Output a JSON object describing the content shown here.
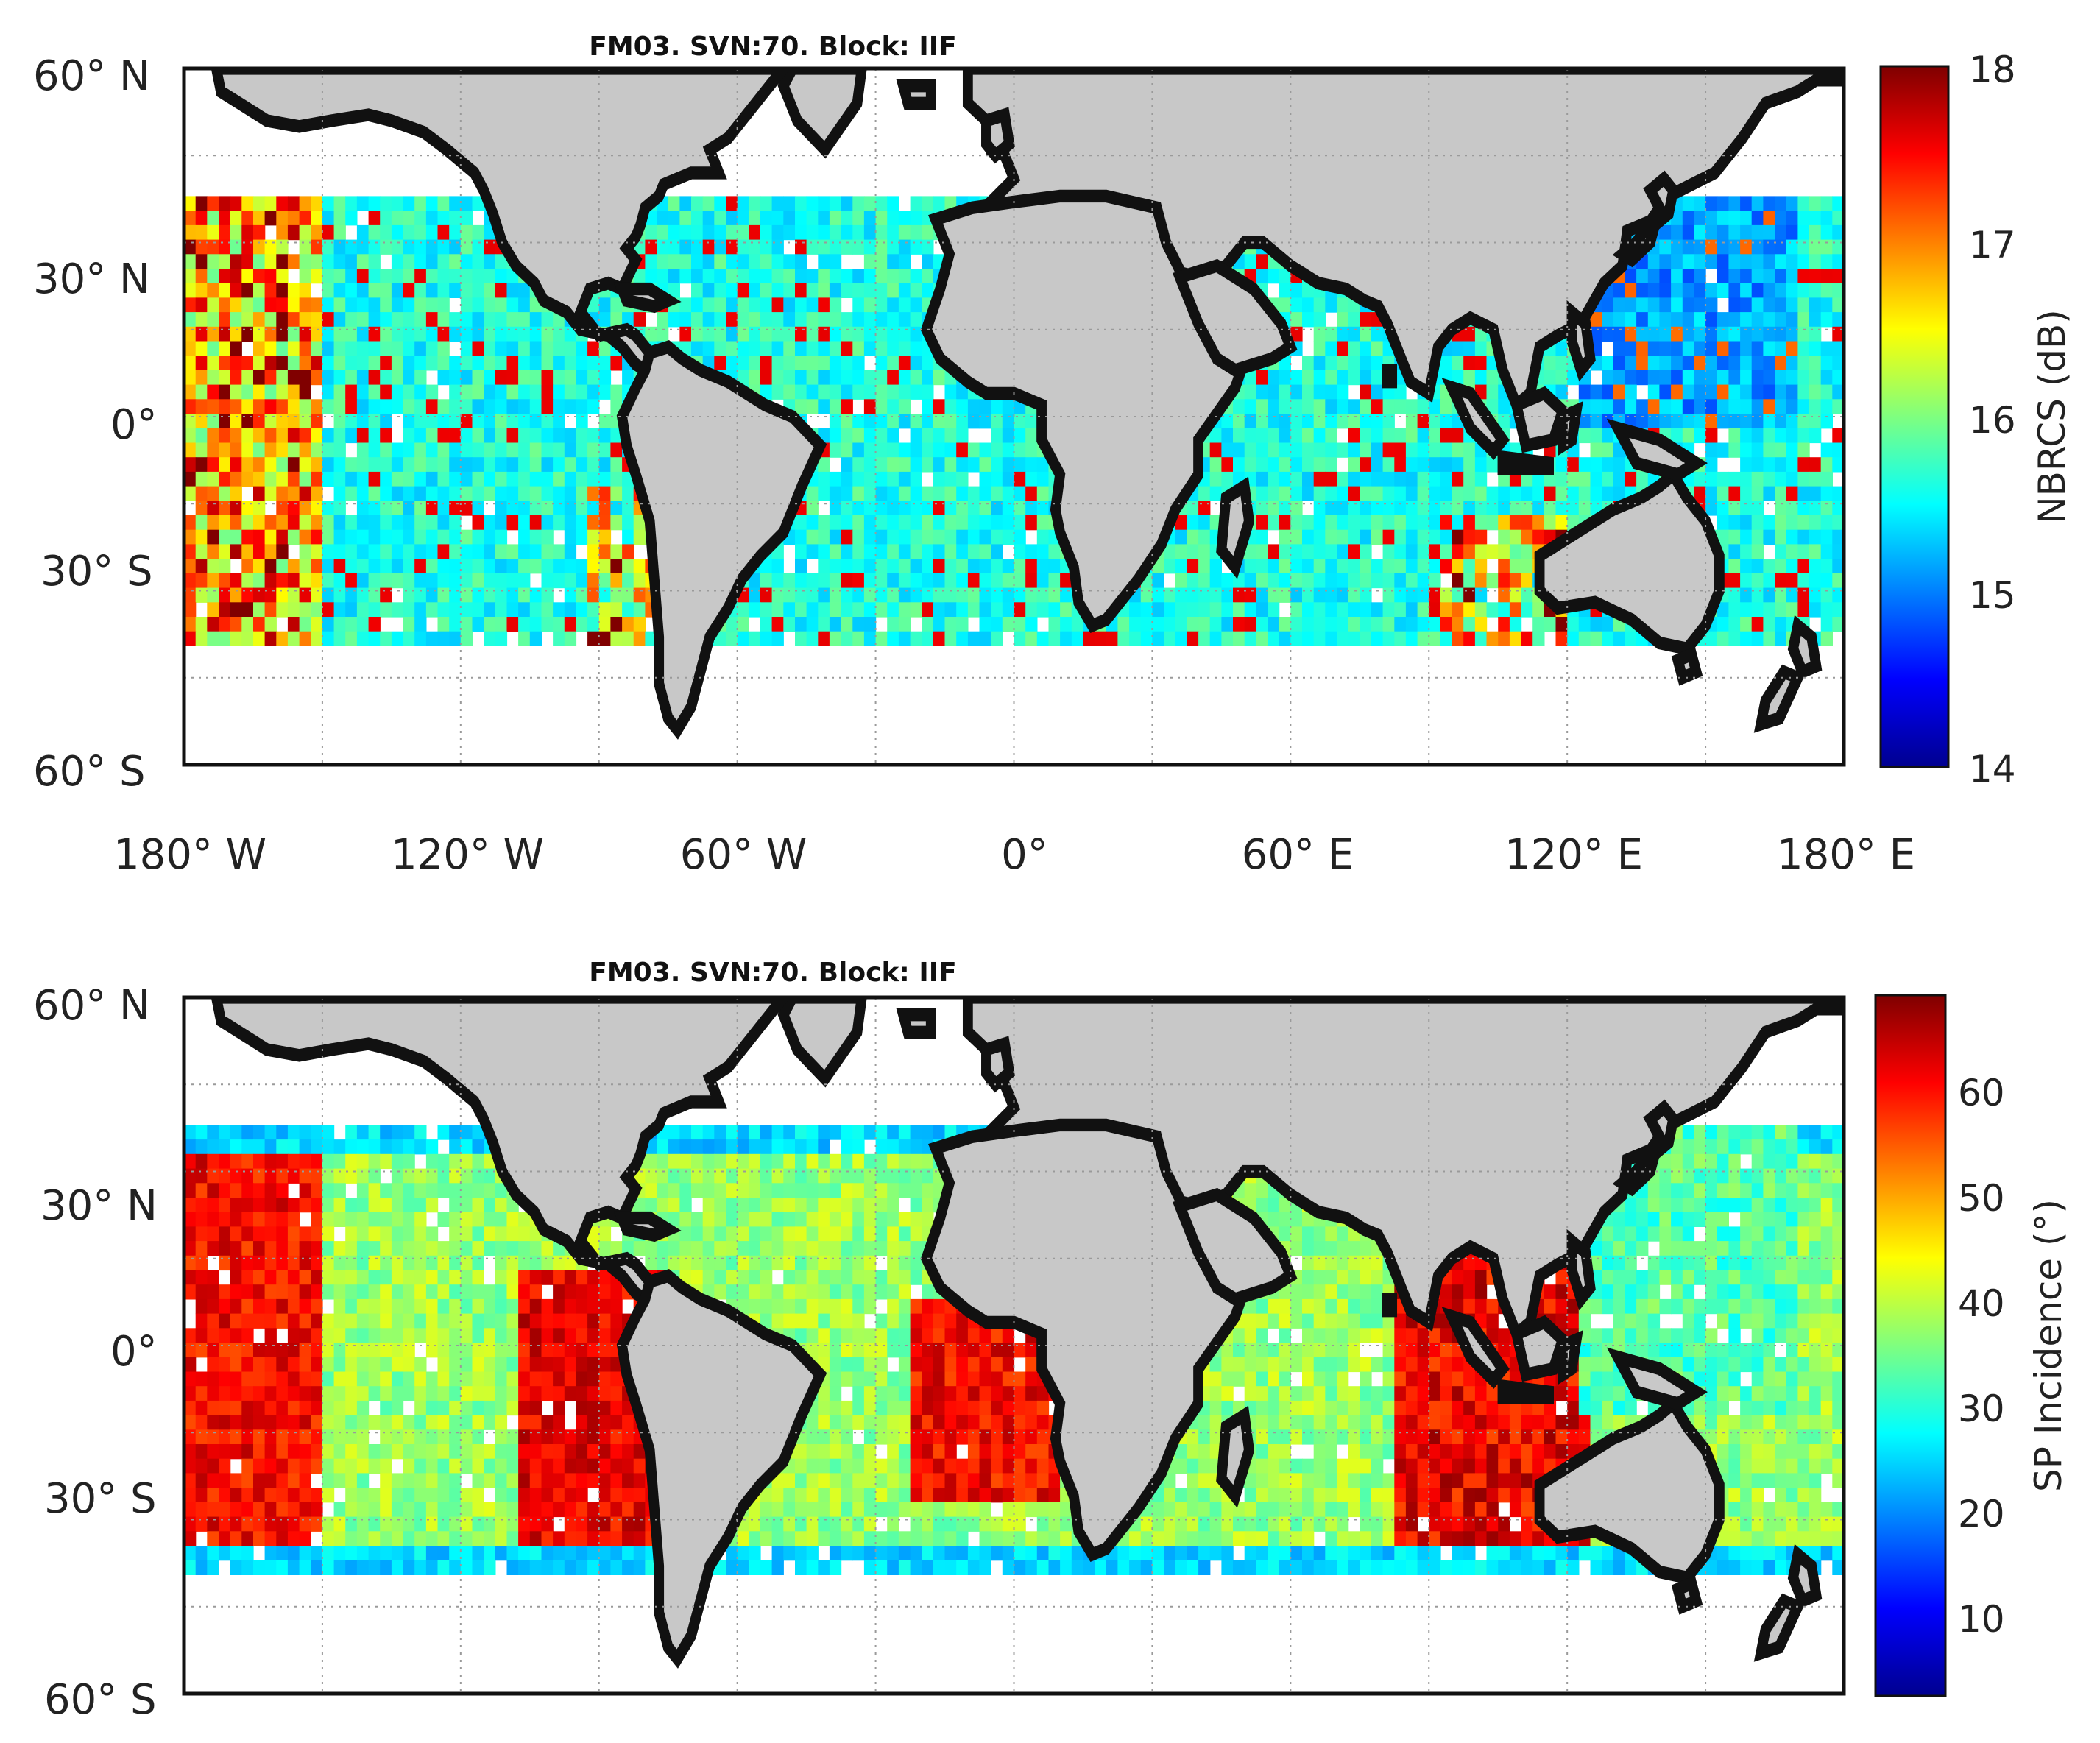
{
  "figure": {
    "panels": [
      {
        "id": "top",
        "title": "FM03. SVN:70. Block: IIF",
        "colorbar": {
          "label": "NBRCS (dB)",
          "min": 14,
          "max": 18,
          "ticks": [
            "18",
            "17",
            "16",
            "15",
            "14"
          ]
        },
        "x_ticks": [
          "180° W",
          "120° W",
          "60° W",
          "0°",
          "60° E",
          "120° E",
          "180° E"
        ],
        "y_ticks": [
          "60° N",
          "30° N",
          "0°",
          "30° S",
          "60° S"
        ]
      },
      {
        "id": "bottom",
        "title": "FM03. SVN:70. Block: IIF",
        "colorbar": {
          "label": "SP Incidence (°)",
          "min": 3,
          "max": 69,
          "ticks": [
            "60",
            "50",
            "40",
            "30",
            "20",
            "10"
          ]
        },
        "y_ticks": [
          "60° N",
          "30° N",
          "0°",
          "30° S",
          "60° S"
        ]
      }
    ],
    "map_extent": {
      "lon": [
        -180,
        180
      ],
      "lat": [
        -60,
        60
      ],
      "data_lat": [
        -38,
        38
      ]
    },
    "colormap": "jet",
    "land_color": "#c8c8c8"
  }
}
